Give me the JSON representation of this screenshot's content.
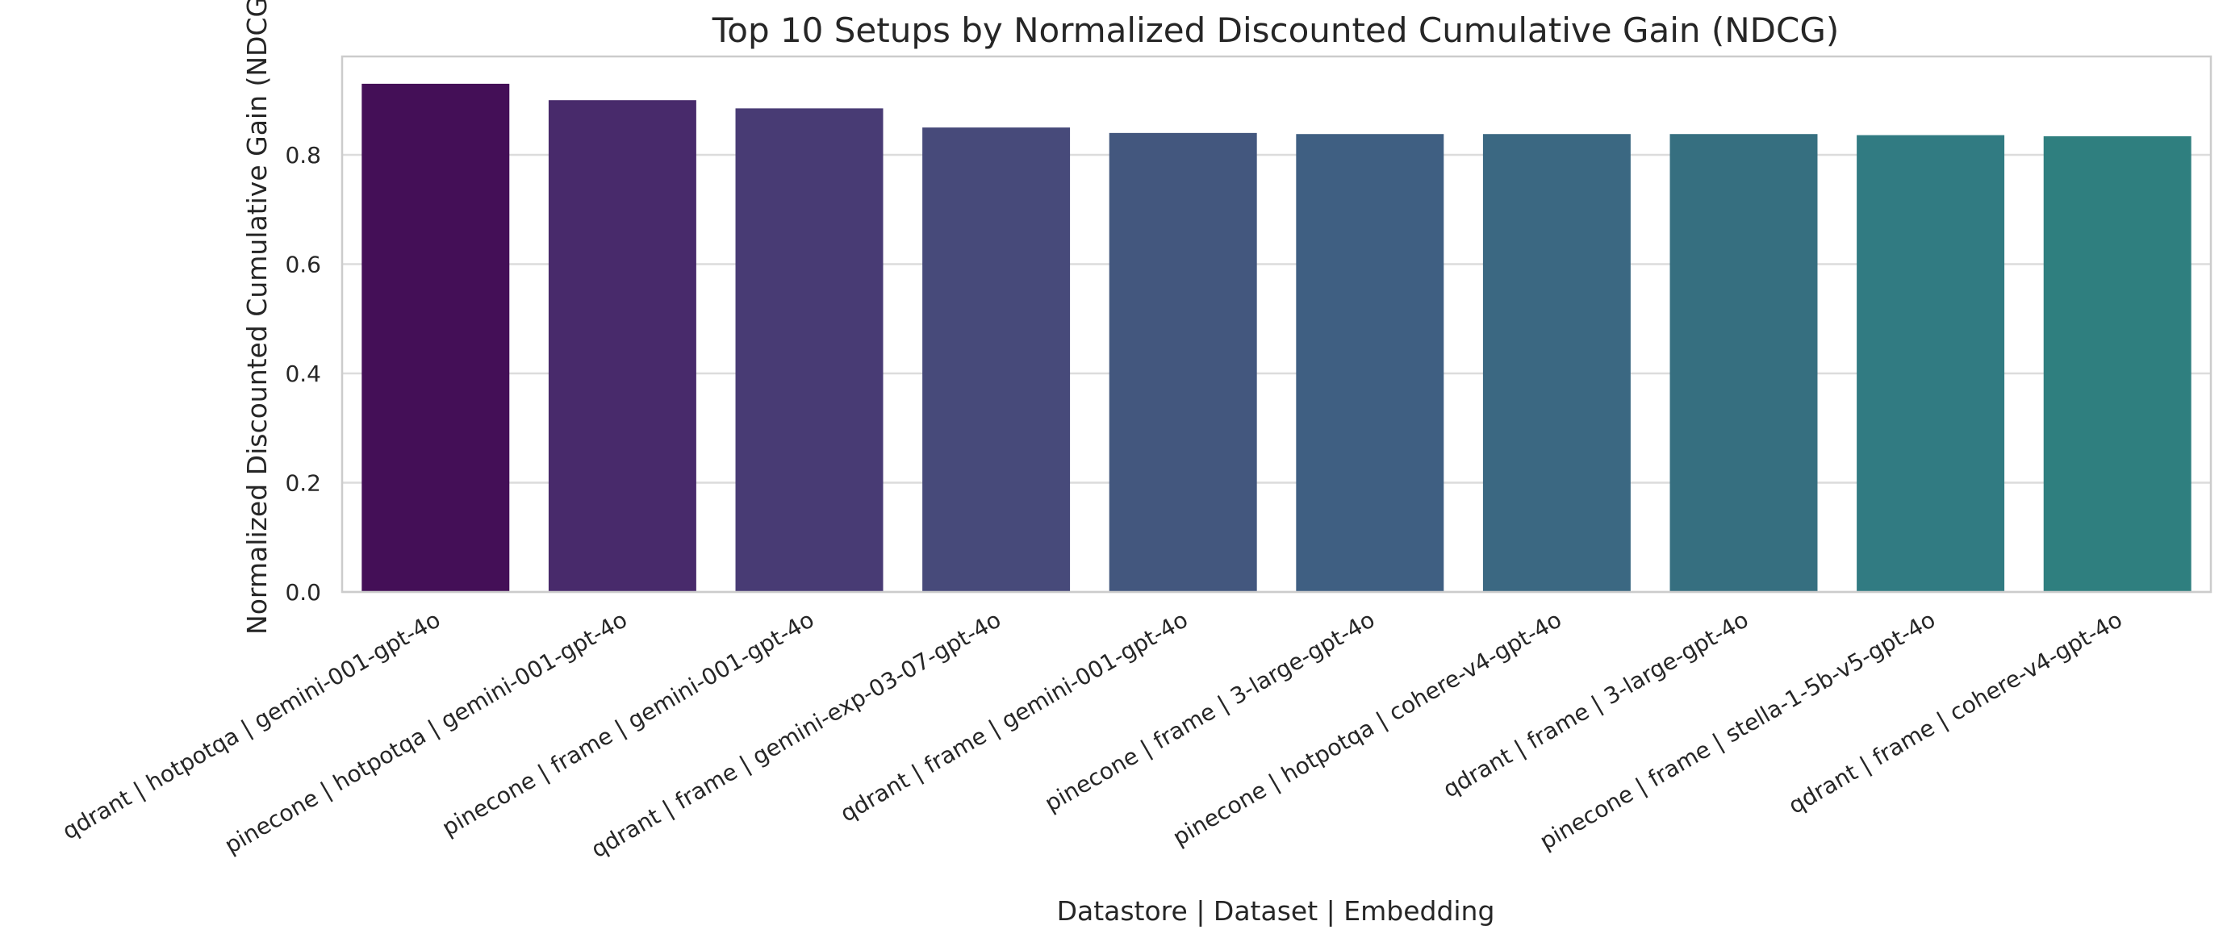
{
  "chart_data": {
    "type": "bar",
    "title": "Top 10 Setups by Normalized Discounted Cumulative Gain (NDCG)",
    "xlabel": "Datastore | Dataset | Embedding",
    "ylabel": "Normalized Discounted Cumulative Gain (NDCG)",
    "ylim": [
      0,
      0.98
    ],
    "yticks": [
      "0.0",
      "0.2",
      "0.4",
      "0.6",
      "0.8"
    ],
    "ytick_values": [
      0.0,
      0.2,
      0.4,
      0.6,
      0.8
    ],
    "grid": true,
    "categories": [
      "qdrant | hotpotqa | gemini-001-gpt-4o",
      "pinecone | hotpotqa | gemini-001-gpt-4o",
      "pinecone | frame | gemini-001-gpt-4o",
      "qdrant | frame | gemini-exp-03-07-gpt-4o",
      "qdrant | frame | gemini-001-gpt-4o",
      "pinecone | frame | 3-large-gpt-4o",
      "pinecone | hotpotqa | cohere-v4-gpt-4o",
      "qdrant | frame | 3-large-gpt-4o",
      "pinecone | frame | stella-1-5b-v5-gpt-4o",
      "qdrant | frame | cohere-v4-gpt-4o"
    ],
    "values": [
      0.93,
      0.9,
      0.885,
      0.85,
      0.84,
      0.838,
      0.838,
      0.838,
      0.836,
      0.834
    ],
    "colors": [
      "#440f57",
      "#482a6b",
      "#483b74",
      "#474a7a",
      "#43577e",
      "#3f5f82",
      "#3b6882",
      "#366f80",
      "#317b82",
      "#2f7f7f"
    ]
  }
}
